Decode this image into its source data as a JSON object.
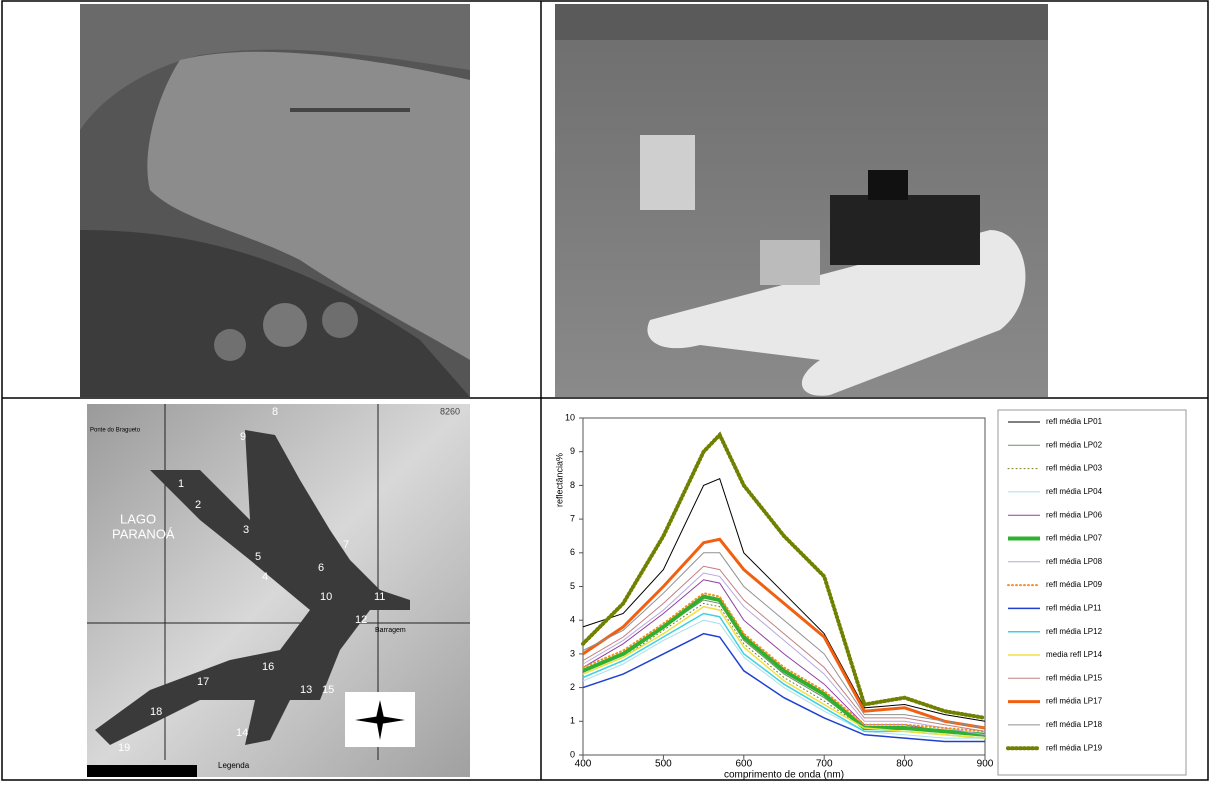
{
  "map": {
    "title": [
      "LAGO",
      "PARANOÁ"
    ],
    "legend_title": "Legenda",
    "corner": "8260",
    "dam": "Barragem",
    "bridge": "Ponte do Bragueto",
    "points": [
      "1",
      "2",
      "3",
      "4",
      "5",
      "6",
      "7",
      "8",
      "9",
      "10",
      "11",
      "12",
      "13",
      "14",
      "15",
      "16",
      "17",
      "18",
      "19"
    ]
  },
  "chart_data": {
    "type": "line",
    "y_label": "reflectância%",
    "x_label": "comprimento de onda (nm)",
    "x": [
      400,
      450,
      500,
      550,
      570,
      600,
      650,
      700,
      750,
      800,
      850,
      900
    ],
    "xlim": [
      400,
      900
    ],
    "xticks": [
      400,
      500,
      600,
      700,
      800,
      900
    ],
    "ylim": [
      0,
      10
    ],
    "yticks": [
      0,
      1,
      2,
      3,
      4,
      5,
      6,
      7,
      8,
      9,
      10
    ],
    "series": [
      {
        "name": "refl média LP01",
        "color": "#000000",
        "width": 1,
        "values": [
          3.8,
          4.2,
          5.5,
          8.0,
          8.2,
          6.0,
          4.8,
          3.6,
          1.4,
          1.5,
          1.2,
          1.0
        ]
      },
      {
        "name": "refl média LP02",
        "color": "#6f8f6f",
        "width": 1,
        "values": [
          2.5,
          3.0,
          3.8,
          4.6,
          4.5,
          3.4,
          2.4,
          1.7,
          0.8,
          0.8,
          0.7,
          0.6
        ]
      },
      {
        "name": "refl média LP03",
        "color": "#7a7a20",
        "width": 1,
        "line_style": "dotted",
        "values": [
          2.4,
          2.9,
          3.7,
          4.5,
          4.4,
          3.3,
          2.3,
          1.6,
          0.8,
          0.8,
          0.7,
          0.6
        ]
      },
      {
        "name": "refl média LP04",
        "color": "#a8e0f0",
        "width": 1,
        "values": [
          2.2,
          2.7,
          3.4,
          4.0,
          3.9,
          2.9,
          2.0,
          1.3,
          0.7,
          0.6,
          0.5,
          0.5
        ]
      },
      {
        "name": "refl média LP06",
        "color": "#9040a0",
        "width": 1,
        "values": [
          2.6,
          3.3,
          4.2,
          5.2,
          5.1,
          4.0,
          3.0,
          2.1,
          0.9,
          0.9,
          0.7,
          0.6
        ]
      },
      {
        "name": "refl média LP07",
        "color": "#30b030",
        "width": 4,
        "values": [
          2.5,
          3.0,
          3.8,
          4.7,
          4.6,
          3.5,
          2.5,
          1.8,
          0.8,
          0.8,
          0.7,
          0.6
        ]
      },
      {
        "name": "refl média LP08",
        "color": "#b8a8e0",
        "width": 1,
        "values": [
          2.7,
          3.4,
          4.3,
          5.4,
          5.3,
          4.4,
          3.4,
          2.4,
          1.0,
          1.0,
          0.8,
          0.6
        ]
      },
      {
        "name": "refl média LP09",
        "color": "#f09020",
        "width": 2,
        "line_style": "dotted",
        "values": [
          2.6,
          3.1,
          3.9,
          4.8,
          4.7,
          3.6,
          2.6,
          1.9,
          0.9,
          0.9,
          0.8,
          0.7
        ]
      },
      {
        "name": "refl média LP11",
        "color": "#2040d0",
        "width": 1.5,
        "values": [
          2.0,
          2.4,
          3.0,
          3.6,
          3.5,
          2.5,
          1.7,
          1.1,
          0.6,
          0.5,
          0.4,
          0.4
        ]
      },
      {
        "name": "refl média LP12",
        "color": "#40d0e0",
        "width": 1.5,
        "values": [
          2.3,
          2.8,
          3.5,
          4.2,
          4.1,
          3.0,
          2.1,
          1.4,
          0.7,
          0.7,
          0.6,
          0.5
        ]
      },
      {
        "name": "media refl LP14",
        "color": "#f0e040",
        "width": 1.5,
        "values": [
          2.4,
          2.9,
          3.6,
          4.4,
          4.3,
          3.2,
          2.2,
          1.5,
          0.8,
          0.7,
          0.6,
          0.5
        ]
      },
      {
        "name": "refl média LP15",
        "color": "#c08080",
        "width": 1,
        "values": [
          2.8,
          3.5,
          4.5,
          5.6,
          5.5,
          4.6,
          3.6,
          2.6,
          1.1,
          1.1,
          0.9,
          0.7
        ]
      },
      {
        "name": "refl média LP17",
        "color": "#f06010",
        "width": 3,
        "values": [
          3.0,
          3.8,
          5.0,
          6.3,
          6.4,
          5.5,
          4.5,
          3.5,
          1.3,
          1.4,
          1.0,
          0.8
        ]
      },
      {
        "name": "refl média LP18",
        "color": "#909090",
        "width": 1,
        "values": [
          3.1,
          3.7,
          4.8,
          6.0,
          6.0,
          5.0,
          4.0,
          3.0,
          1.2,
          1.2,
          1.0,
          0.8
        ]
      },
      {
        "name": "refl média LP19",
        "color": "#708000",
        "width": 4,
        "line_style": "dotted",
        "values": [
          3.3,
          4.5,
          6.5,
          9.0,
          9.5,
          8.0,
          6.5,
          5.3,
          1.5,
          1.7,
          1.3,
          1.1
        ]
      }
    ]
  }
}
